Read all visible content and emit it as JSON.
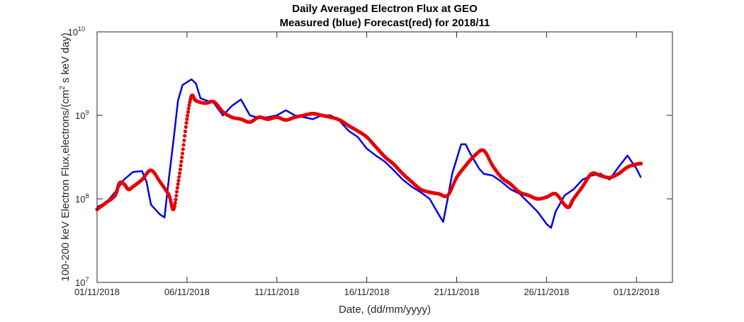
{
  "chart_data": {
    "type": "line",
    "title": "Daily Averaged Electron Flux at GEO",
    "subtitle": "Measured (blue) Forecast(red) for 2018/11",
    "xlabel": "Date, (dd/mm/yyyy)",
    "ylabel_main": "100-200 keV Electron Flux,electrons/(cm",
    "ylabel_sup": "2",
    "ylabel_tail": " s keV day)",
    "y_scale": "log",
    "ylim": [
      10000000,
      10000000000
    ],
    "xlim": [
      "2018-11-01",
      "2018-12-03"
    ],
    "x_ticks": [
      {
        "date": "2018-11-01",
        "label": "01/11/2018"
      },
      {
        "date": "2018-11-06",
        "label": "06/11/2018"
      },
      {
        "date": "2018-11-11",
        "label": "11/11/2018"
      },
      {
        "date": "2018-11-16",
        "label": "16/11/2018"
      },
      {
        "date": "2018-11-21",
        "label": "21/11/2018"
      },
      {
        "date": "2018-11-26",
        "label": "26/11/2018"
      },
      {
        "date": "2018-12-01",
        "label": "01/12/2018"
      }
    ],
    "y_ticks": [
      {
        "value": 10000000,
        "base": "10",
        "exponent": "7"
      },
      {
        "value": 100000000,
        "base": "10",
        "exponent": "8"
      },
      {
        "value": 1000000000,
        "base": "10",
        "exponent": "9"
      },
      {
        "value": 10000000000,
        "base": "10",
        "exponent": "10"
      }
    ],
    "grid": false,
    "series": [
      {
        "color": "#0000e6",
        "style": "line",
        "points": [
          [
            "2018-11-01 00:00",
            80000000
          ],
          [
            "2018-11-01 12:00",
            90000000
          ],
          [
            "2018-11-02 00:00",
            120000000
          ],
          [
            "2018-11-02 12:00",
            170000000
          ],
          [
            "2018-11-03 00:00",
            210000000
          ],
          [
            "2018-11-03 12:00",
            215000000
          ],
          [
            "2018-11-03 18:00",
            160000000
          ],
          [
            "2018-11-04 00:00",
            85000000
          ],
          [
            "2018-11-04 12:00",
            65000000
          ],
          [
            "2018-11-04 18:00",
            60000000
          ],
          [
            "2018-11-05 00:00",
            180000000
          ],
          [
            "2018-11-05 06:00",
            500000000
          ],
          [
            "2018-11-05 12:00",
            1500000000
          ],
          [
            "2018-11-05 18:00",
            2300000000
          ],
          [
            "2018-11-06 06:00",
            2700000000
          ],
          [
            "2018-11-06 12:00",
            2400000000
          ],
          [
            "2018-11-06 18:00",
            1600000000
          ],
          [
            "2018-11-07 12:00",
            1400000000
          ],
          [
            "2018-11-08 00:00",
            1000000000
          ],
          [
            "2018-11-08 12:00",
            1300000000
          ],
          [
            "2018-11-09 00:00",
            1550000000
          ],
          [
            "2018-11-09 12:00",
            1000000000
          ],
          [
            "2018-11-10 00:00",
            930000000
          ],
          [
            "2018-11-10 12:00",
            950000000
          ],
          [
            "2018-11-11 00:00",
            1000000000
          ],
          [
            "2018-11-11 12:00",
            1150000000
          ],
          [
            "2018-11-12 00:00",
            1000000000
          ],
          [
            "2018-11-12 12:00",
            950000000
          ],
          [
            "2018-11-13 00:00",
            900000000
          ],
          [
            "2018-11-13 12:00",
            1000000000
          ],
          [
            "2018-11-14 00:00",
            1000000000
          ],
          [
            "2018-11-14 12:00",
            850000000
          ],
          [
            "2018-11-15 00:00",
            650000000
          ],
          [
            "2018-11-15 12:00",
            550000000
          ],
          [
            "2018-11-16 00:00",
            400000000
          ],
          [
            "2018-11-16 12:00",
            330000000
          ],
          [
            "2018-11-17 00:00",
            280000000
          ],
          [
            "2018-11-17 12:00",
            220000000
          ],
          [
            "2018-11-18 00:00",
            170000000
          ],
          [
            "2018-11-18 12:00",
            140000000
          ],
          [
            "2018-11-19 00:00",
            120000000
          ],
          [
            "2018-11-19 12:00",
            100000000
          ],
          [
            "2018-11-20 00:00",
            65000000
          ],
          [
            "2018-11-20 06:00",
            53000000
          ],
          [
            "2018-11-20 12:00",
            100000000
          ],
          [
            "2018-11-20 18:00",
            200000000
          ],
          [
            "2018-11-21 06:00",
            450000000
          ],
          [
            "2018-11-21 12:00",
            450000000
          ],
          [
            "2018-11-21 18:00",
            350000000
          ],
          [
            "2018-11-22 06:00",
            230000000
          ],
          [
            "2018-11-22 12:00",
            200000000
          ],
          [
            "2018-11-23 00:00",
            190000000
          ],
          [
            "2018-11-23 12:00",
            160000000
          ],
          [
            "2018-11-24 00:00",
            130000000
          ],
          [
            "2018-11-24 12:00",
            115000000
          ],
          [
            "2018-11-25 00:00",
            90000000
          ],
          [
            "2018-11-25 12:00",
            70000000
          ],
          [
            "2018-11-26 00:00",
            50000000
          ],
          [
            "2018-11-26 06:00",
            45000000
          ],
          [
            "2018-11-26 12:00",
            70000000
          ],
          [
            "2018-11-27 00:00",
            110000000
          ],
          [
            "2018-11-27 12:00",
            130000000
          ],
          [
            "2018-11-28 00:00",
            170000000
          ],
          [
            "2018-11-28 12:00",
            190000000
          ],
          [
            "2018-11-29 00:00",
            200000000
          ],
          [
            "2018-11-29 12:00",
            170000000
          ],
          [
            "2018-11-30 00:00",
            240000000
          ],
          [
            "2018-11-30 12:00",
            330000000
          ],
          [
            "2018-12-01 00:00",
            230000000
          ],
          [
            "2018-12-01 06:00",
            180000000
          ]
        ]
      },
      {
        "color": "#e60000",
        "style": "dots",
        "points": [
          [
            "2018-11-01 00:00",
            75000000
          ],
          [
            "2018-11-01 12:00",
            90000000
          ],
          [
            "2018-11-02 00:00",
            110000000
          ],
          [
            "2018-11-02 06:00",
            155000000
          ],
          [
            "2018-11-02 12:00",
            150000000
          ],
          [
            "2018-11-02 18:00",
            130000000
          ],
          [
            "2018-11-03 00:00",
            140000000
          ],
          [
            "2018-11-03 12:00",
            170000000
          ],
          [
            "2018-11-04 00:00",
            220000000
          ],
          [
            "2018-11-04 12:00",
            160000000
          ],
          [
            "2018-11-05 00:00",
            110000000
          ],
          [
            "2018-11-05 06:00",
            75000000
          ],
          [
            "2018-11-05 12:00",
            150000000
          ],
          [
            "2018-11-05 18:00",
            350000000
          ],
          [
            "2018-11-06 00:00",
            900000000
          ],
          [
            "2018-11-06 06:00",
            1700000000
          ],
          [
            "2018-11-06 12:00",
            1500000000
          ],
          [
            "2018-11-07 00:00",
            1400000000
          ],
          [
            "2018-11-07 12:00",
            1450000000
          ],
          [
            "2018-11-08 00:00",
            1100000000
          ],
          [
            "2018-11-08 12:00",
            950000000
          ],
          [
            "2018-11-09 00:00",
            900000000
          ],
          [
            "2018-11-09 12:00",
            830000000
          ],
          [
            "2018-11-10 00:00",
            950000000
          ],
          [
            "2018-11-10 12:00",
            900000000
          ],
          [
            "2018-11-11 00:00",
            950000000
          ],
          [
            "2018-11-11 12:00",
            880000000
          ],
          [
            "2018-11-12 00:00",
            950000000
          ],
          [
            "2018-11-12 12:00",
            1000000000
          ],
          [
            "2018-11-13 00:00",
            1050000000
          ],
          [
            "2018-11-13 12:00",
            1000000000
          ],
          [
            "2018-11-14 00:00",
            950000000
          ],
          [
            "2018-11-14 12:00",
            880000000
          ],
          [
            "2018-11-15 00:00",
            750000000
          ],
          [
            "2018-11-15 12:00",
            650000000
          ],
          [
            "2018-11-16 00:00",
            550000000
          ],
          [
            "2018-11-16 12:00",
            420000000
          ],
          [
            "2018-11-17 00:00",
            320000000
          ],
          [
            "2018-11-17 12:00",
            260000000
          ],
          [
            "2018-11-18 00:00",
            200000000
          ],
          [
            "2018-11-18 12:00",
            160000000
          ],
          [
            "2018-11-19 00:00",
            130000000
          ],
          [
            "2018-11-19 12:00",
            120000000
          ],
          [
            "2018-11-20 00:00",
            115000000
          ],
          [
            "2018-11-20 12:00",
            110000000
          ],
          [
            "2018-11-21 00:00",
            180000000
          ],
          [
            "2018-11-21 12:00",
            250000000
          ],
          [
            "2018-11-22 00:00",
            330000000
          ],
          [
            "2018-11-22 12:00",
            380000000
          ],
          [
            "2018-11-23 00:00",
            250000000
          ],
          [
            "2018-11-23 12:00",
            180000000
          ],
          [
            "2018-11-24 00:00",
            150000000
          ],
          [
            "2018-11-24 12:00",
            120000000
          ],
          [
            "2018-11-25 00:00",
            110000000
          ],
          [
            "2018-11-25 12:00",
            100000000
          ],
          [
            "2018-11-26 00:00",
            105000000
          ],
          [
            "2018-11-26 12:00",
            115000000
          ],
          [
            "2018-11-27 00:00",
            85000000
          ],
          [
            "2018-11-27 06:00",
            80000000
          ],
          [
            "2018-11-27 12:00",
            100000000
          ],
          [
            "2018-11-28 00:00",
            140000000
          ],
          [
            "2018-11-28 12:00",
            200000000
          ],
          [
            "2018-11-29 00:00",
            190000000
          ],
          [
            "2018-11-29 12:00",
            180000000
          ],
          [
            "2018-11-30 00:00",
            200000000
          ],
          [
            "2018-11-30 12:00",
            240000000
          ],
          [
            "2018-12-01 00:00",
            260000000
          ],
          [
            "2018-12-01 06:00",
            265000000
          ]
        ]
      }
    ]
  }
}
